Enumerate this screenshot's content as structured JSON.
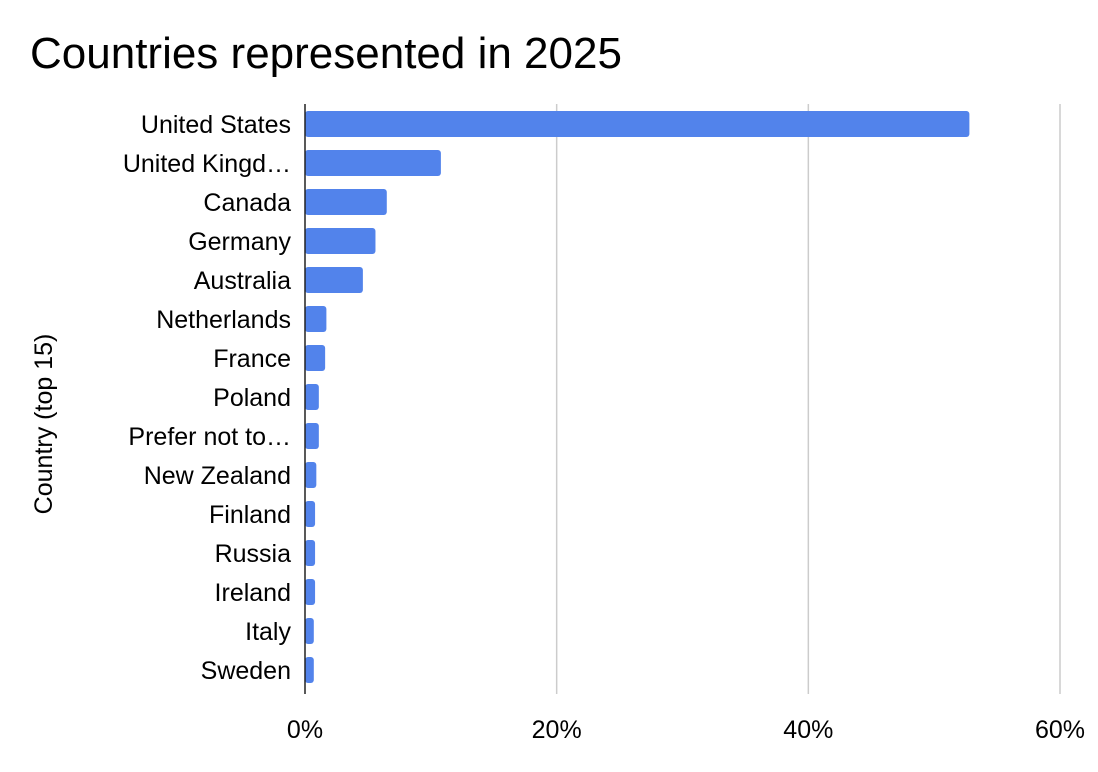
{
  "chart_data": {
    "type": "bar",
    "orientation": "horizontal",
    "title": "Countries represented in 2025",
    "xlabel": "",
    "ylabel": "Country (top 15)",
    "categories": [
      "United States",
      "United Kingd…",
      "Canada",
      "Germany",
      "Australia",
      "Netherlands",
      "France",
      "Poland",
      "Prefer not to…",
      "New Zealand",
      "Finland",
      "Russia",
      "Ireland",
      "Italy",
      "Sweden"
    ],
    "values": [
      52.8,
      10.8,
      6.5,
      5.6,
      4.6,
      1.7,
      1.6,
      1.1,
      1.1,
      0.9,
      0.8,
      0.8,
      0.8,
      0.7,
      0.7
    ],
    "value_unit": "%",
    "xlim": [
      0,
      60
    ],
    "xticks": [
      0,
      20,
      40,
      60
    ],
    "xtick_labels": [
      "0%",
      "20%",
      "40%",
      "60%"
    ],
    "grid": "vertical",
    "legend": "none",
    "bar_color": "#5283EB"
  }
}
